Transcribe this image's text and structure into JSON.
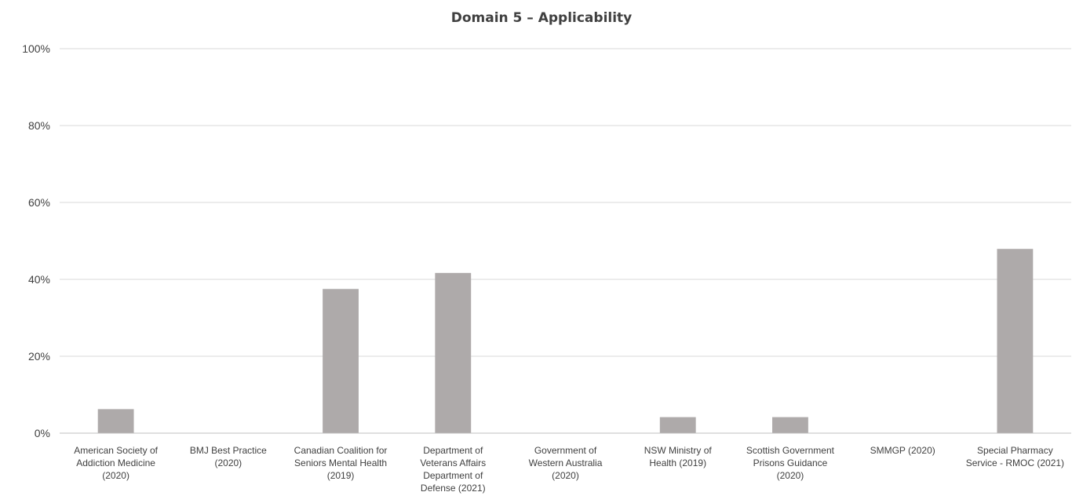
{
  "chart_data": {
    "type": "bar",
    "title": "Domain 5 – Applicability",
    "xlabel": "",
    "ylabel": "",
    "categories": [
      [
        "American Society of",
        "Addiction Medicine",
        "(2020)"
      ],
      [
        "BMJ Best Practice",
        "(2020)"
      ],
      [
        "Canadian Coalition for",
        "Seniors Mental Health",
        "(2019)"
      ],
      [
        "Department of",
        "Veterans Affairs",
        "Department of",
        "Defense (2021)"
      ],
      [
        "Government of",
        "Western Australia",
        "(2020)"
      ],
      [
        "NSW Ministry of",
        "Health (2019)"
      ],
      [
        "Scottish Government",
        "Prisons Guidance",
        "(2020)"
      ],
      [
        "SMMGP (2020)"
      ],
      [
        "Special Pharmacy",
        "Service - RMOC (2021)"
      ]
    ],
    "values": [
      6.25,
      0,
      37.5,
      41.67,
      0,
      4.17,
      4.17,
      0,
      47.92
    ],
    "ylim": [
      0,
      100
    ],
    "yticks": [
      "0%",
      "20%",
      "40%",
      "60%",
      "80%",
      "100%"
    ],
    "ytick_values": [
      0,
      20,
      40,
      60,
      80,
      100
    ],
    "grid": true,
    "legend": "none",
    "bar_color": "#aeaaaa"
  }
}
